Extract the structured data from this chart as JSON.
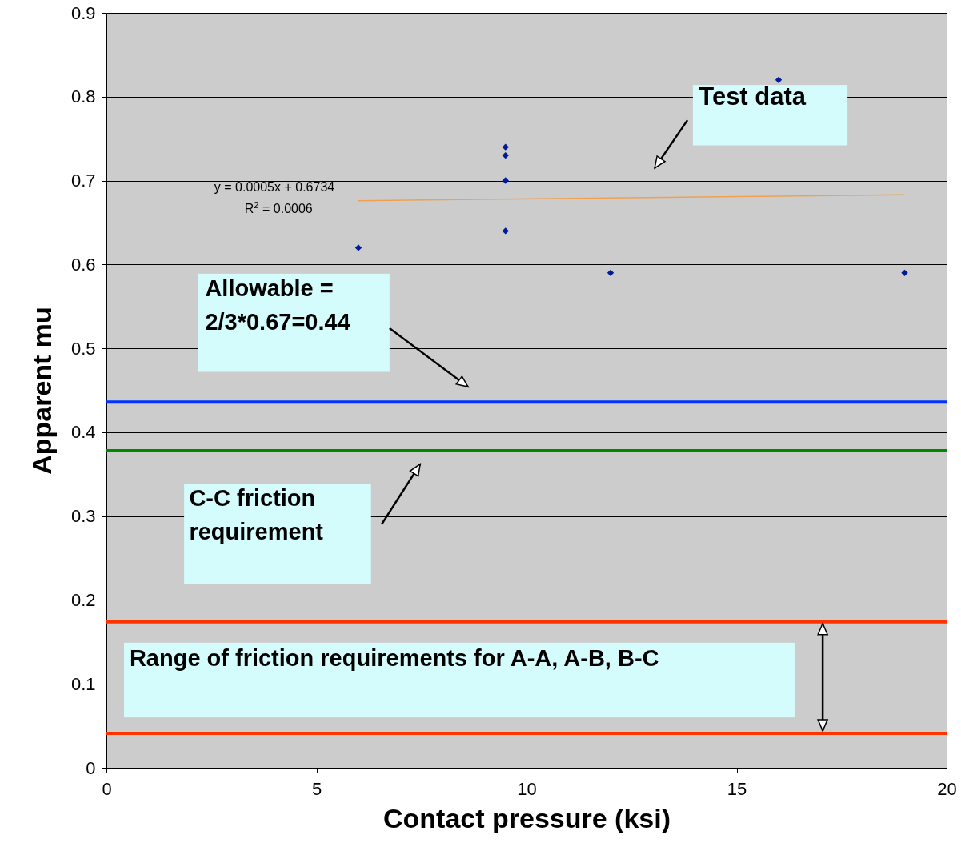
{
  "chart_data": {
    "type": "scatter",
    "xlabel": "Contact pressure (ksi)",
    "ylabel": "Apparent mu",
    "series": [
      {
        "color": "#001a99",
        "x": [
          6,
          9.5,
          9.5,
          9.5,
          9.5,
          12,
          16,
          19
        ],
        "values": [
          0.62,
          0.74,
          0.73,
          0.7,
          0.64,
          0.59,
          0.82,
          0.59
        ]
      },
      {
        "type": "line",
        "marker": "none",
        "color": "#f0a050",
        "x": [
          6,
          19
        ],
        "values": [
          0.676,
          0.683
        ]
      }
    ],
    "ref_lines": [
      {
        "axis": "y",
        "value": 0.436,
        "color": "#0033ff"
      },
      {
        "axis": "y",
        "value": 0.378,
        "color": "#008800"
      },
      {
        "axis": "y",
        "value": 0.174,
        "color": "#ff3300"
      },
      {
        "axis": "y",
        "value": 0.041,
        "color": "#ff3300"
      }
    ],
    "annotations": [
      "Test data",
      "Allowable =\n2/3*0.67=0.44",
      "C-C friction\nrequirement",
      "Range of friction requirements for A-A, A-B, B-C",
      "y = 0.0005x + 0.6734",
      "R$^{2}$ = 0.0006"
    ],
    "xlim": [
      0,
      20
    ],
    "xticks": [
      0,
      5,
      10,
      15,
      20
    ],
    "ylim": [
      0,
      0.9
    ],
    "yticks": [
      0,
      0.1,
      0.2,
      0.3,
      0.4,
      0.5,
      0.6,
      0.7,
      0.8,
      0.9
    ],
    "grid": "y",
    "marker": "diamond"
  }
}
